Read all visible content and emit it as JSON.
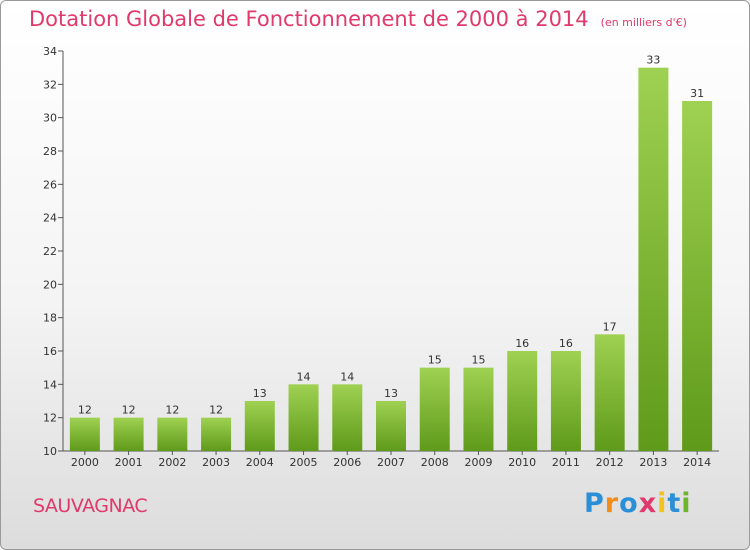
{
  "title": "Dotation Globale de Fonctionnement de 2000 à 2014",
  "unit": "(en milliers d'€)",
  "commune": "SAUVAGNAC",
  "logo": {
    "text": "Proxiti",
    "letters": [
      {
        "ch": "P",
        "color": "#2a8fd6"
      },
      {
        "ch": "r",
        "color": "#f28c1b"
      },
      {
        "ch": "o",
        "color": "#2a8fd6"
      },
      {
        "ch": "x",
        "color": "#e0396b"
      },
      {
        "ch": "i",
        "color": "#f2c31b"
      },
      {
        "ch": "t",
        "color": "#2a8fd6"
      },
      {
        "ch": "i",
        "color": "#6cb52d"
      }
    ]
  },
  "colors": {
    "title": "#e0396b",
    "bar_light": "#9fd152",
    "bar_dark": "#5f9a1a"
  },
  "chart_data": {
    "type": "bar",
    "categories": [
      "2000",
      "2001",
      "2002",
      "2003",
      "2004",
      "2005",
      "2006",
      "2007",
      "2008",
      "2009",
      "2010",
      "2011",
      "2012",
      "2013",
      "2014"
    ],
    "values": [
      12,
      12,
      12,
      12,
      13,
      14,
      14,
      13,
      15,
      15,
      16,
      16,
      17,
      33,
      31
    ],
    "yticks": [
      10,
      12,
      14,
      16,
      18,
      20,
      22,
      24,
      26,
      28,
      30,
      32,
      34
    ],
    "ylim": [
      10,
      34
    ],
    "grid": false,
    "legend": "none"
  }
}
